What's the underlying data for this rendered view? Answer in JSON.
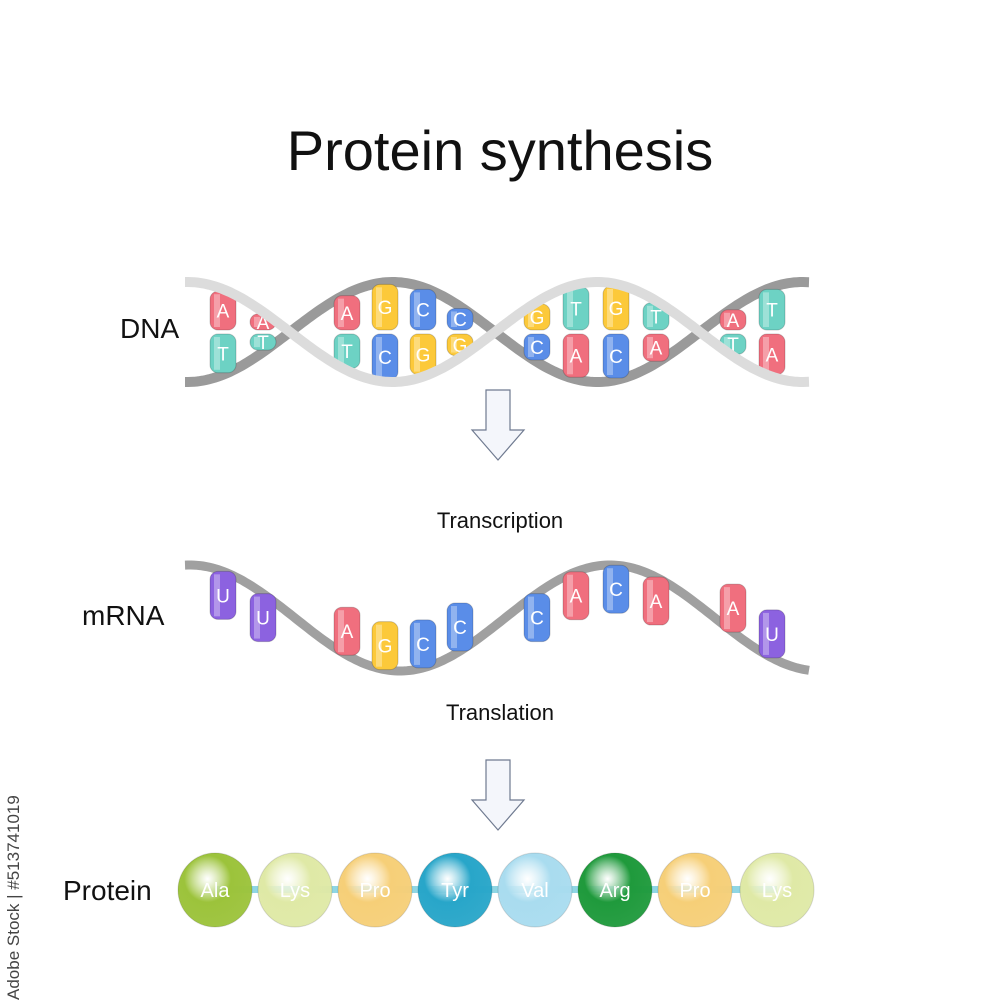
{
  "title": "Protein synthesis",
  "labels": {
    "dna": "DNA",
    "mrna": "mRNA",
    "protein": "Protein"
  },
  "steps": {
    "transcription": "Transcription",
    "translation": "Translation"
  },
  "credit": "Adobe Stock | #513741019",
  "dna": {
    "top_strand": [
      "A",
      "A",
      "A",
      "G",
      "C",
      "C",
      "G",
      "T",
      "G",
      "T",
      "A",
      "T"
    ],
    "bottom_strand": [
      "T",
      "T",
      "T",
      "C",
      "G",
      "G",
      "C",
      "A",
      "C",
      "A",
      "T",
      "A"
    ]
  },
  "mrna": [
    "U",
    "U",
    "A",
    "G",
    "C",
    "C",
    "C",
    "A",
    "C",
    "A",
    "A",
    "U"
  ],
  "protein": [
    {
      "name": "Ala",
      "color": "#9cc33b"
    },
    {
      "name": "Lys",
      "color": "#dfe9a6"
    },
    {
      "name": "Pro",
      "color": "#f6cf78"
    },
    {
      "name": "Tyr",
      "color": "#28a6c9"
    },
    {
      "name": "Val",
      "color": "#a9dcef"
    },
    {
      "name": "Arg",
      "color": "#1f9a3c"
    },
    {
      "name": "Pro",
      "color": "#f6cf78"
    },
    {
      "name": "Lys",
      "color": "#dfe9a6"
    }
  ],
  "base_colors": {
    "A": "#f06f7e",
    "T": "#6dd2c4",
    "G": "#fcc93a",
    "C": "#5a8de8",
    "U": "#8c62e0"
  },
  "icons": {
    "arrow": "hollow-down-arrow"
  }
}
